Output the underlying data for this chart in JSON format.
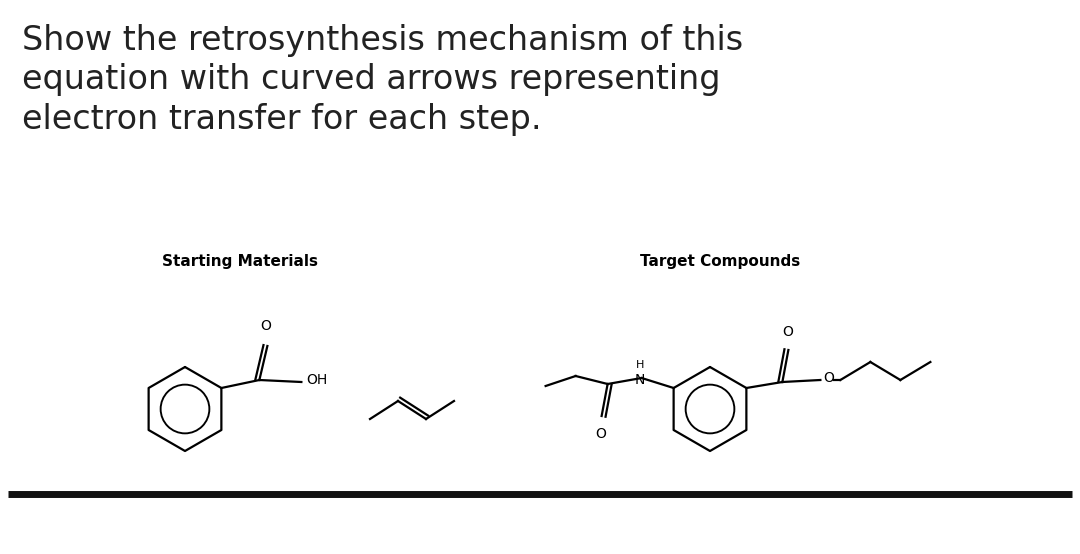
{
  "title_line1": "Show the retrosynthesis mechanism of this",
  "title_line2": "equation with curved arrows representing",
  "title_line3": "electron transfer for each step.",
  "label_left": "Starting Materials",
  "label_right": "Target Compounds",
  "bg_color": "#ffffff",
  "text_color": "#222222",
  "title_fontsize": 24,
  "label_fontsize": 11,
  "line_color": "#111111",
  "line_thickness": 5
}
